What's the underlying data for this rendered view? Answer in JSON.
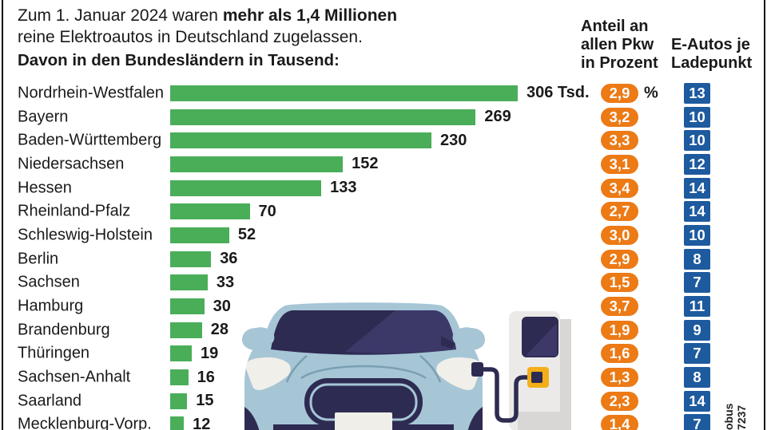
{
  "header": {
    "line1_regular": "Zum 1. Januar 2024 waren ",
    "line1_bold": "mehr als 1,4 Millionen",
    "line2": "reine Elektroautos in Deutschland zugelassen.",
    "subtitle": "Davon in den Bundesländern in Tausend:"
  },
  "columns": {
    "share_header": {
      "line1": "Anteil an",
      "line2": "allen Pkw",
      "line3": "in Prozent"
    },
    "charge_header": {
      "line1": "E-Autos je",
      "line2": "Ladepunkt"
    }
  },
  "rows": [
    {
      "state": "Nordrhein-Westfalen",
      "value": 306,
      "value_label": "306 Tsd.",
      "share": "2,9",
      "percent_suffix": "%",
      "chargepoints": "13"
    },
    {
      "state": "Bayern",
      "value": 269,
      "value_label": "269",
      "share": "3,2",
      "chargepoints": "10"
    },
    {
      "state": "Baden-Württemberg",
      "value": 230,
      "value_label": "230",
      "share": "3,3",
      "chargepoints": "10"
    },
    {
      "state": "Niedersachsen",
      "value": 152,
      "value_label": "152",
      "share": "3,1",
      "chargepoints": "12"
    },
    {
      "state": "Hessen",
      "value": 133,
      "value_label": "133",
      "share": "3,4",
      "chargepoints": "14"
    },
    {
      "state": "Rheinland-Pfalz",
      "value": 70,
      "value_label": "70",
      "share": "2,7",
      "chargepoints": "14"
    },
    {
      "state": "Schleswig-Holstein",
      "value": 52,
      "value_label": "52",
      "share": "3,0",
      "chargepoints": "10"
    },
    {
      "state": "Berlin",
      "value": 36,
      "value_label": "36",
      "share": "2,9",
      "chargepoints": "8"
    },
    {
      "state": "Sachsen",
      "value": 33,
      "value_label": "33",
      "share": "1,5",
      "chargepoints": "7"
    },
    {
      "state": "Hamburg",
      "value": 30,
      "value_label": "30",
      "share": "3,7",
      "chargepoints": "11"
    },
    {
      "state": "Brandenburg",
      "value": 28,
      "value_label": "28",
      "share": "1,9",
      "chargepoints": "9"
    },
    {
      "state": "Thüringen",
      "value": 19,
      "value_label": "19",
      "share": "1,6",
      "chargepoints": "7"
    },
    {
      "state": "Sachsen-Anhalt",
      "value": 16,
      "value_label": "16",
      "share": "1,3",
      "chargepoints": "8"
    },
    {
      "state": "Saarland",
      "value": 15,
      "value_label": "15",
      "share": "2,3",
      "chargepoints": "14"
    },
    {
      "state": "Mecklenburg-Vorp.",
      "value": 12,
      "value_label": "12",
      "share": "1,4",
      "chargepoints": "7"
    }
  ],
  "watermark": {
    "line1": "obus",
    "line2": "7237"
  },
  "colors": {
    "bar_green": "#4aae59",
    "share_orange": "#ec7a15",
    "chargepoint_blue": "#1d5a9e",
    "text_dark": "#1a1a1a",
    "frame_black": "#111111",
    "car_body_blue": "#a6c6d6",
    "car_dark_navy": "#2e2b52",
    "car_navy_highlight": "#3c3969",
    "crease_blue": "#7b9fb2",
    "headlight_white": "#f0efe9",
    "station_gray": "#ebeae8",
    "station_gray_dark": "#d8d7d5",
    "socket_yellow": "#f3ae19",
    "plate_white": "#efeee8"
  },
  "chart_data": {
    "type": "bar",
    "orientation": "horizontal",
    "title": "Zum 1. Januar 2024 waren mehr als 1,4 Millionen reine Elektroautos in Deutschland zugelassen.",
    "subtitle": "Davon in den Bundesländern in Tausend:",
    "unit": "Tausend (Tsd.)",
    "categories": [
      "Nordrhein-Westfalen",
      "Bayern",
      "Baden-Württemberg",
      "Niedersachsen",
      "Hessen",
      "Rheinland-Pfalz",
      "Schleswig-Holstein",
      "Berlin",
      "Sachsen",
      "Hamburg",
      "Brandenburg",
      "Thüringen",
      "Sachsen-Anhalt",
      "Saarland",
      "Mecklenburg-Vorp."
    ],
    "series": [
      {
        "name": "E-Autos in Tausend",
        "values": [
          306,
          269,
          230,
          152,
          133,
          70,
          52,
          36,
          33,
          30,
          28,
          19,
          16,
          15,
          12
        ]
      },
      {
        "name": "Anteil an allen Pkw in Prozent",
        "values": [
          2.9,
          3.2,
          3.3,
          3.1,
          3.4,
          2.7,
          3.0,
          2.9,
          1.5,
          3.7,
          1.9,
          1.6,
          1.3,
          2.3,
          1.4
        ]
      },
      {
        "name": "E-Autos je Ladepunkt",
        "values": [
          13,
          10,
          10,
          12,
          14,
          14,
          10,
          8,
          7,
          11,
          9,
          7,
          8,
          14,
          7
        ]
      }
    ],
    "xlim": [
      0,
      320
    ],
    "grid": false,
    "legend_position": "none"
  }
}
